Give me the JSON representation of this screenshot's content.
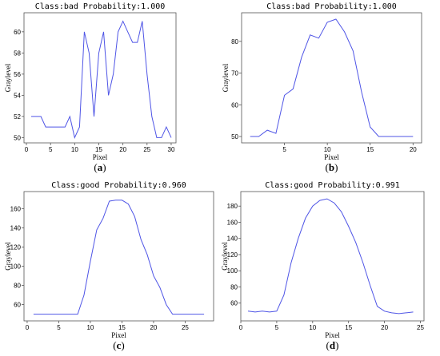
{
  "chart_data": [
    {
      "type": "line",
      "title": "Class:bad Probability:1.000",
      "xlabel": "Pixel",
      "ylabel": "Graylevel",
      "caption": "a",
      "xlim": [
        -0.5,
        31
      ],
      "ylim": [
        49.5,
        61.8
      ],
      "xticks": [
        0,
        5,
        10,
        15,
        20,
        25,
        30
      ],
      "yticks": [
        50,
        52,
        54,
        56,
        58,
        60
      ],
      "x": [
        1,
        2,
        3,
        4,
        5,
        6,
        7,
        8,
        9,
        10,
        11,
        12,
        13,
        14,
        15,
        16,
        17,
        18,
        19,
        20,
        21,
        22,
        23,
        24,
        25,
        26,
        27,
        28,
        29,
        30
      ],
      "y": [
        52,
        52,
        52,
        51,
        51,
        51,
        51,
        51,
        52,
        50,
        51,
        60,
        58,
        52,
        58,
        60,
        54,
        56,
        60,
        61,
        60,
        59,
        59,
        61,
        56,
        52,
        50,
        50,
        51,
        50
      ]
    },
    {
      "type": "line",
      "title": "Class:bad Probability:1.000",
      "xlabel": "Pixel",
      "ylabel": "Graylevel",
      "caption": "b",
      "xlim": [
        0,
        21
      ],
      "ylim": [
        48,
        89
      ],
      "xticks": [
        5,
        10,
        15,
        20
      ],
      "yticks": [
        50,
        60,
        70,
        80
      ],
      "x": [
        1,
        2,
        3,
        4,
        5,
        6,
        7,
        8,
        9,
        10,
        11,
        12,
        13,
        14,
        15,
        16,
        17,
        18,
        19,
        20
      ],
      "y": [
        50,
        50,
        52,
        51,
        63,
        65,
        75,
        82,
        81,
        86,
        87,
        83,
        77,
        64,
        53,
        50,
        50,
        50,
        50,
        50
      ]
    },
    {
      "type": "line",
      "title": "Class:good Probability:0.960",
      "xlabel": "Pixel",
      "ylabel": "Graylevel",
      "caption": "c",
      "xlim": [
        -0.5,
        29.5
      ],
      "ylim": [
        43,
        178
      ],
      "xticks": [
        0,
        5,
        10,
        15,
        20,
        25
      ],
      "yticks": [
        60,
        80,
        100,
        120,
        140,
        160
      ],
      "x": [
        1,
        2,
        3,
        4,
        5,
        6,
        7,
        8,
        9,
        10,
        11,
        12,
        13,
        14,
        15,
        16,
        17,
        18,
        19,
        20,
        21,
        22,
        23,
        24,
        25,
        26,
        27,
        28
      ],
      "y": [
        50,
        50,
        50,
        50,
        50,
        50,
        50,
        50,
        70,
        105,
        138,
        150,
        168,
        169,
        169,
        165,
        152,
        128,
        112,
        90,
        78,
        60,
        50,
        50,
        50,
        50,
        50,
        50
      ]
    },
    {
      "type": "line",
      "title": "Class:good Probability:0.991",
      "xlabel": "Pixel",
      "ylabel": "Graylevel",
      "caption": "d",
      "xlim": [
        0,
        25.5
      ],
      "ylim": [
        38,
        198
      ],
      "xticks": [
        0,
        5,
        10,
        15,
        20,
        25
      ],
      "yticks": [
        60,
        80,
        100,
        120,
        140,
        160,
        180
      ],
      "x": [
        1,
        2,
        3,
        4,
        5,
        6,
        7,
        8,
        9,
        10,
        11,
        12,
        13,
        14,
        15,
        16,
        17,
        18,
        19,
        20,
        21,
        22,
        23,
        24
      ],
      "y": [
        50,
        49,
        50,
        49,
        50,
        70,
        110,
        140,
        165,
        180,
        187,
        189,
        184,
        173,
        155,
        135,
        110,
        82,
        56,
        50,
        48,
        47,
        48,
        49
      ]
    }
  ]
}
